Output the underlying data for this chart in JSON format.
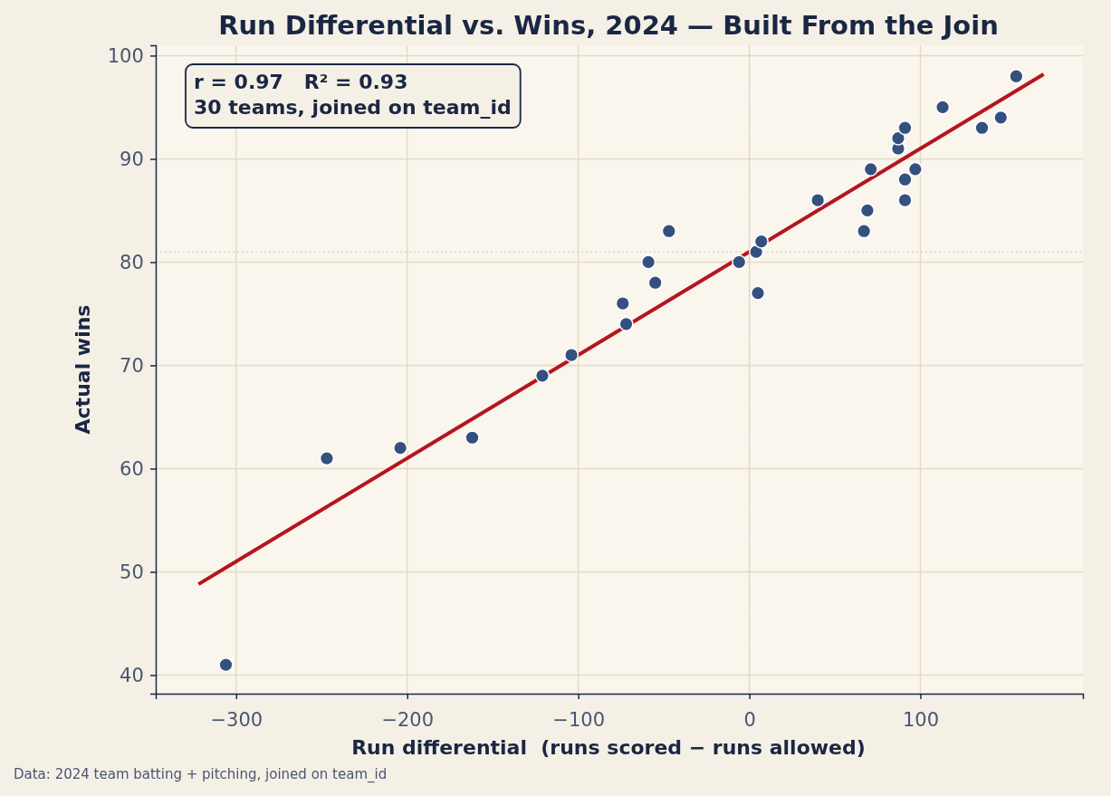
{
  "chart_data": {
    "type": "scatter",
    "title": "Run Differential vs. Wins, 2024 — Built From the Join",
    "xlabel": "Run differential  (runs scored − runs allowed)",
    "ylabel": "Actual wins",
    "annotations": [
      "r = 0.97   R² = 0.93",
      "30 teams, joined on team_id",
      "Data: 2024 team batting + pitching, joined on team_id"
    ],
    "xlim": [
      -347,
      195
    ],
    "ylim": [
      38.2,
      101
    ],
    "xticks": [
      {
        "value": -300,
        "label": "−300"
      },
      {
        "value": -200,
        "label": "−200"
      },
      {
        "value": -100,
        "label": "−100"
      },
      0,
      100
    ],
    "yticks": [
      40,
      50,
      60,
      70,
      80,
      90,
      100
    ],
    "grid": true,
    "ref_lines": [
      {
        "axis": "y",
        "value": 81,
        "color": "#d8d2b0",
        "line_style": "dotted"
      },
      {
        "axis": "x",
        "value": 0,
        "color": "#d8d2b0",
        "line_style": "dotted"
      }
    ],
    "series": [
      {
        "marker": "circle",
        "color": "#34507f",
        "x": [
          -306,
          -247,
          -204,
          -162,
          -121,
          -104,
          -74,
          -72,
          -59,
          -55,
          -47,
          -6,
          4,
          5,
          7,
          40,
          67,
          69,
          71,
          87,
          87,
          91,
          91,
          91,
          97,
          113,
          136,
          147,
          156
        ],
        "values": [
          41,
          61,
          62,
          63,
          69,
          71,
          76,
          74,
          80,
          78,
          83,
          80,
          81,
          77,
          82,
          86,
          83,
          85,
          89,
          91,
          92,
          93,
          88,
          86,
          89,
          95,
          93,
          94,
          98
        ]
      },
      {
        "type": "line",
        "color": "#b5161e",
        "x": [
          -322,
          172
        ],
        "values": [
          48.8,
          98.2
        ]
      }
    ]
  }
}
